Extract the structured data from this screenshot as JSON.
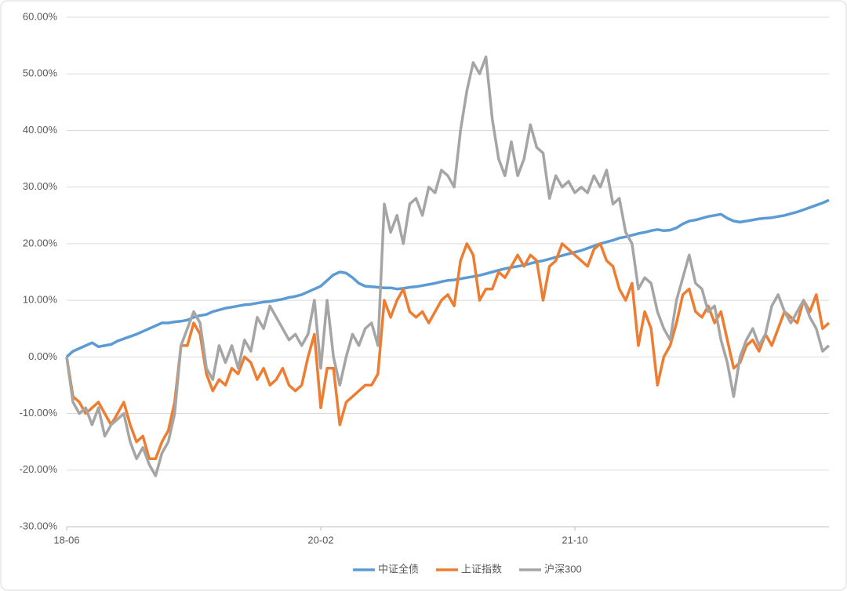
{
  "chart_data": {
    "type": "line",
    "categories": [
      "18-06",
      null,
      null,
      null,
      null,
      null,
      null,
      null,
      null,
      null,
      null,
      null,
      null,
      null,
      null,
      null,
      null,
      null,
      null,
      null,
      null,
      null,
      null,
      null,
      null,
      null,
      null,
      null,
      null,
      null,
      null,
      null,
      null,
      null,
      null,
      null,
      null,
      null,
      null,
      null,
      "20-02",
      null,
      null,
      null,
      null,
      null,
      null,
      null,
      null,
      null,
      null,
      null,
      null,
      null,
      null,
      null,
      null,
      null,
      null,
      null,
      null,
      null,
      null,
      null,
      null,
      null,
      null,
      null,
      null,
      null,
      null,
      null,
      null,
      null,
      null,
      null,
      null,
      null,
      null,
      null,
      "21-10",
      null,
      null,
      null,
      null,
      null,
      null,
      null,
      null,
      null,
      null,
      null,
      null,
      null,
      null,
      null,
      null,
      null,
      null,
      null,
      null,
      null,
      null,
      null,
      null,
      null,
      null,
      null,
      null,
      null,
      null,
      null,
      null,
      null,
      null,
      null,
      null,
      null,
      null,
      null,
      null
    ],
    "series": [
      {
        "name": "中证全债",
        "color": "#5b9bd5",
        "values": [
          0,
          1,
          1.5,
          2,
          2.5,
          1.8,
          2,
          2.2,
          2.8,
          3.2,
          3.6,
          4,
          4.5,
          5,
          5.5,
          6,
          6,
          6.2,
          6.3,
          6.5,
          7,
          7.3,
          7.5,
          8,
          8.3,
          8.6,
          8.8,
          9,
          9.2,
          9.3,
          9.5,
          9.7,
          9.8,
          10,
          10.2,
          10.5,
          10.7,
          11,
          11.5,
          12,
          12.5,
          13.5,
          14.5,
          15,
          14.8,
          14,
          13,
          12.5,
          12.4,
          12.3,
          12.2,
          12.2,
          12,
          12.1,
          12.3,
          12.4,
          12.6,
          12.8,
          13,
          13.3,
          13.5,
          13.6,
          13.8,
          14,
          14.2,
          14.4,
          14.7,
          15,
          15.3,
          15.6,
          15.8,
          16,
          16.2,
          16.5,
          16.8,
          17,
          17.3,
          17.6,
          17.9,
          18.2,
          18.5,
          18.8,
          19.2,
          19.6,
          20,
          20.3,
          20.6,
          21,
          21.2,
          21.5,
          21.8,
          22,
          22.3,
          22.5,
          22.3,
          22.4,
          22.8,
          23.5,
          24,
          24.2,
          24.5,
          24.8,
          25,
          25.2,
          24.5,
          24,
          23.8,
          24,
          24.2,
          24.4,
          24.5,
          24.6,
          24.8,
          25,
          25.3,
          25.6,
          26,
          26.4,
          26.8,
          27.2,
          27.7
        ]
      },
      {
        "name": "上证指数",
        "color": "#ed7d31",
        "values": [
          0,
          -7,
          -8,
          -10,
          -9,
          -8,
          -10,
          -12,
          -10,
          -8,
          -12,
          -15,
          -14,
          -18,
          -18,
          -15,
          -13,
          -8,
          2,
          2,
          6,
          4,
          -3,
          -6,
          -4,
          -5,
          -2,
          -3,
          0,
          -1,
          -4,
          -2,
          -5,
          -4,
          -2,
          -5,
          -6,
          -5,
          0,
          4,
          -9,
          -2,
          -2,
          -12,
          -8,
          -7,
          -6,
          -5,
          -5,
          -3,
          10,
          7,
          10,
          12,
          8,
          7,
          8,
          6,
          8,
          10,
          11,
          9,
          17,
          20,
          18,
          10,
          12,
          12,
          15,
          14,
          16,
          18,
          16,
          18,
          17,
          10,
          16,
          17,
          20,
          19,
          18,
          17,
          16,
          19,
          20,
          17,
          16,
          12,
          10,
          13,
          2,
          8,
          5,
          -5,
          0,
          2,
          6,
          11,
          12,
          8,
          7,
          9,
          6,
          8,
          3,
          -2,
          -1,
          2,
          3,
          1,
          4,
          2,
          5,
          8,
          7,
          6,
          10,
          8,
          11,
          5,
          6
        ]
      },
      {
        "name": "沪深300",
        "color": "#a5a5a5",
        "values": [
          0,
          -8,
          -10,
          -9,
          -12,
          -9,
          -14,
          -12,
          -11,
          -10,
          -15,
          -18,
          -16,
          -19,
          -21,
          -17,
          -15,
          -10,
          2,
          5,
          8,
          6,
          -2,
          -4,
          2,
          -1,
          2,
          -2,
          3,
          1,
          7,
          5,
          9,
          7,
          5,
          3,
          4,
          2,
          4,
          10,
          -2,
          10,
          0,
          -5,
          0,
          4,
          2,
          5,
          6,
          2,
          27,
          22,
          25,
          20,
          27,
          28,
          25,
          30,
          29,
          33,
          32,
          30,
          40,
          47,
          52,
          50,
          53,
          42,
          35,
          32,
          38,
          32,
          35,
          41,
          37,
          36,
          28,
          32,
          30,
          31,
          29,
          30,
          29,
          32,
          30,
          33,
          27,
          28,
          22,
          20,
          12,
          14,
          13,
          8,
          5,
          3,
          10,
          14,
          18,
          13,
          12,
          8,
          9,
          3,
          -1,
          -7,
          0,
          3,
          5,
          2,
          4,
          9,
          11,
          8,
          6,
          8,
          10,
          7,
          5,
          1,
          2
        ]
      }
    ],
    "ylim": [
      -30,
      60
    ],
    "yticks": [
      {
        "value": -30,
        "label": "-30.00%"
      },
      {
        "value": -20,
        "label": "-20.00%"
      },
      {
        "value": -10,
        "label": "-10.00%"
      },
      {
        "value": 0,
        "label": "0.00%"
      },
      {
        "value": 10,
        "label": "10.00%"
      },
      {
        "value": 20,
        "label": "20.00%"
      },
      {
        "value": 30,
        "label": "30.00%"
      },
      {
        "value": 40,
        "label": "40.00%"
      },
      {
        "value": 50,
        "label": "50.00%"
      },
      {
        "value": 60,
        "label": "60.00%"
      }
    ],
    "grid": true,
    "legend": "bottom"
  }
}
